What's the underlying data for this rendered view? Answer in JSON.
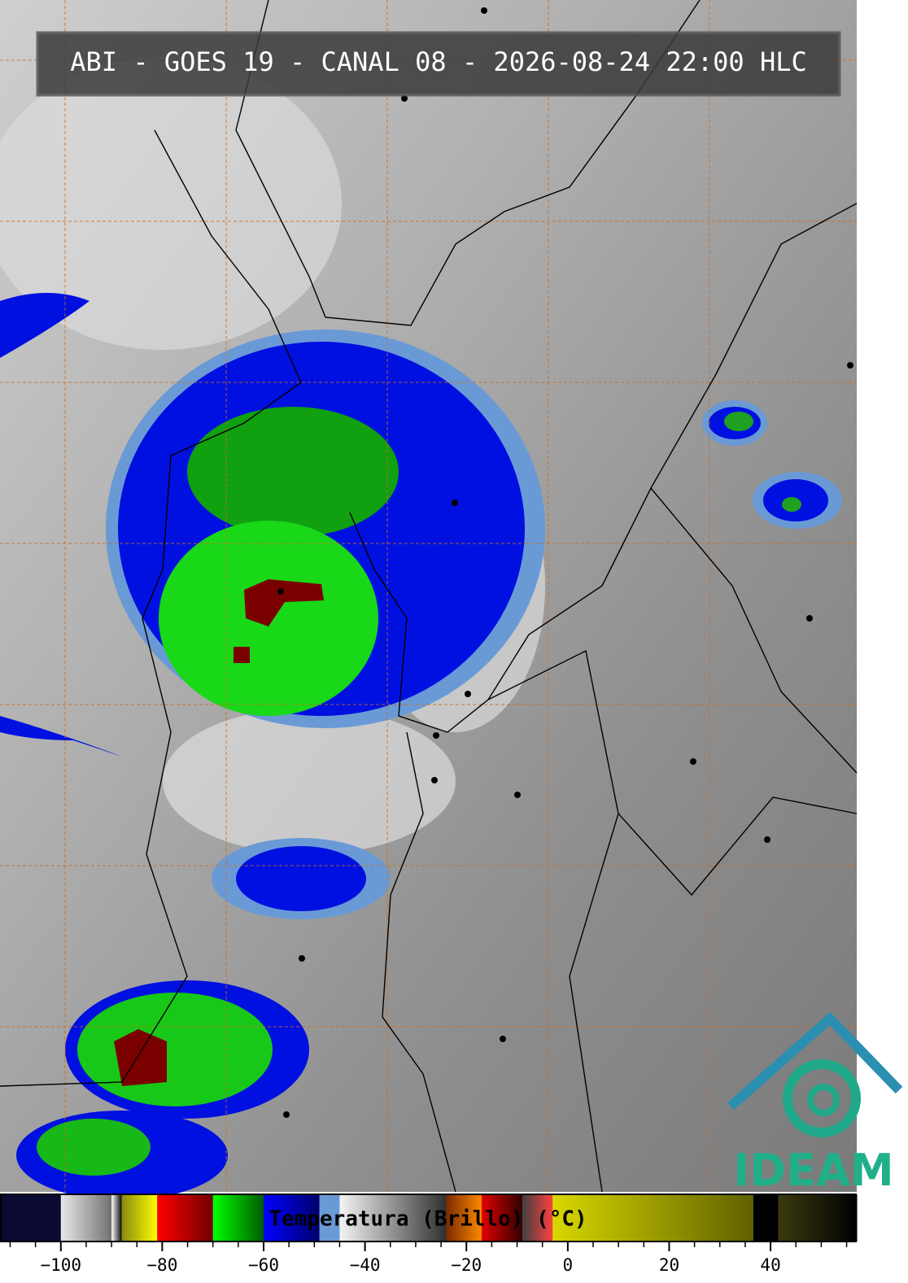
{
  "map": {
    "title": "ABI - GOES 19 - CANAL 08 - 2026-08-24 22:00 HLC",
    "logo": "IDEAM",
    "colorbar": {
      "label": "Temperatura (Brillo) (°C)",
      "lim": [
        -112,
        57
      ],
      "ticks": [
        {
          "value": -100,
          "label": "−100"
        },
        {
          "value": -80,
          "label": "−80"
        },
        {
          "value": -60,
          "label": "−60"
        },
        {
          "value": -40,
          "label": "−40"
        },
        {
          "value": -20,
          "label": "−20"
        },
        0,
        20,
        40
      ],
      "minor_ticks": [
        -110,
        -105,
        -95,
        -90,
        -85,
        -75,
        -70,
        -65,
        -55,
        -50,
        -45,
        -35,
        -30,
        -25,
        -15,
        -10,
        -5,
        5,
        10,
        15,
        25,
        30,
        35,
        45,
        50,
        55
      ],
      "segments": [
        {
          "from": -112,
          "to": -100,
          "colors": [
            "#0a0a32",
            "#0a0a32"
          ]
        },
        {
          "from": -100,
          "to": -90,
          "colors": [
            "#e8e8e8",
            "#707070"
          ]
        },
        {
          "from": -90,
          "to": -88,
          "colors": [
            "#ffffff",
            "#000000"
          ]
        },
        {
          "from": -88,
          "to": -81,
          "colors": [
            "#8a8a10",
            "#ffff00"
          ]
        },
        {
          "from": -81,
          "to": -70,
          "colors": [
            "#ff0000",
            "#700000"
          ]
        },
        {
          "from": -70,
          "to": -60,
          "colors": [
            "#00ff00",
            "#005a00"
          ]
        },
        {
          "from": -60,
          "to": -49,
          "colors": [
            "#0000ff",
            "#00006a"
          ]
        },
        {
          "from": -49,
          "to": -45,
          "colors": [
            "#6a9ad6",
            "#6a9ad6"
          ]
        },
        {
          "from": -45,
          "to": -24,
          "colors": [
            "#f4f4f4",
            "#303030"
          ]
        },
        {
          "from": -24,
          "to": -17,
          "colors": [
            "#7a2a00",
            "#ff8a00"
          ]
        },
        {
          "from": -17,
          "to": -9,
          "colors": [
            "#e00000",
            "#300000"
          ]
        },
        {
          "from": -9,
          "to": -3,
          "colors": [
            "#404040",
            "#ff4040"
          ]
        },
        {
          "from": -3,
          "to": 36.6,
          "colors": [
            "#d8d800",
            "#606000"
          ]
        },
        {
          "from": 36.6,
          "to": 41.5,
          "colors": [
            "#000000",
            "#000000"
          ]
        },
        {
          "from": 41.5,
          "to": 57,
          "colors": [
            "#3a3a10",
            "#000000"
          ]
        }
      ]
    }
  }
}
